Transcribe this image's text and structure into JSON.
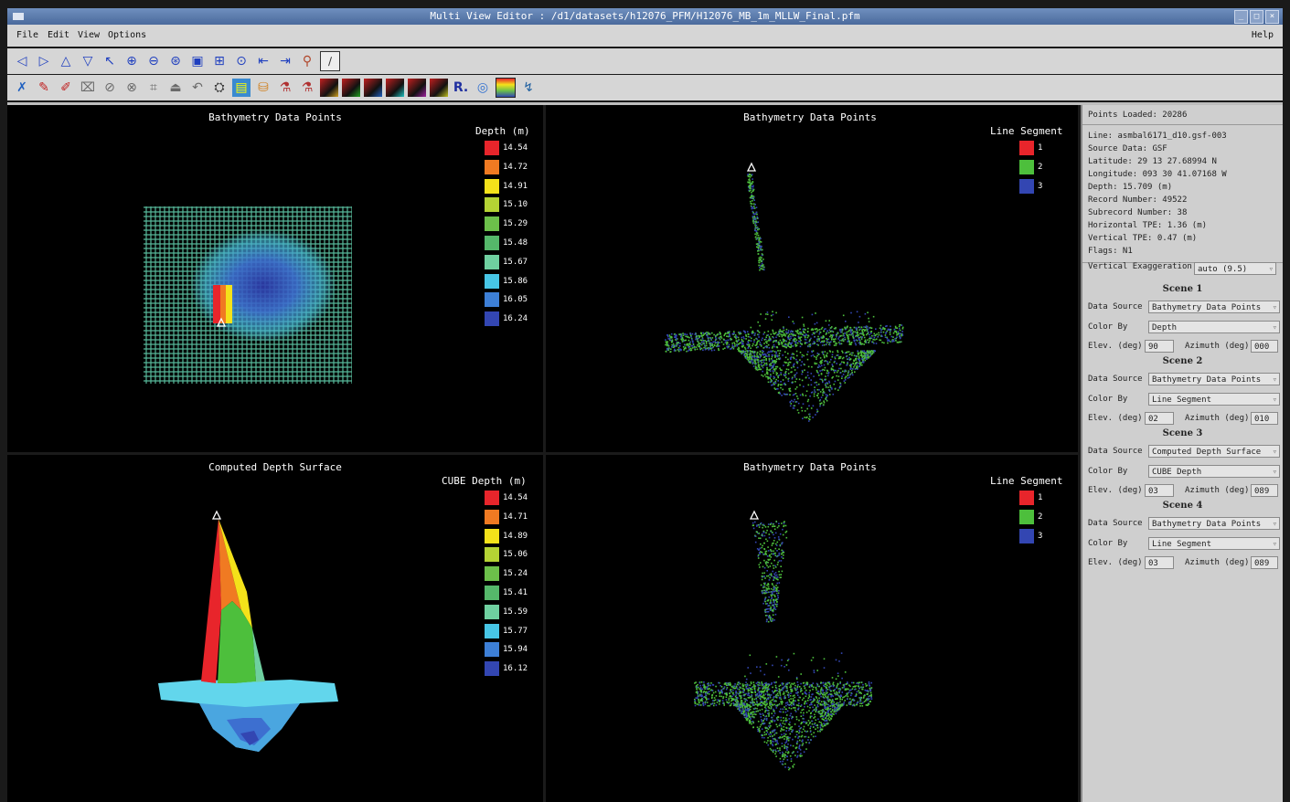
{
  "window": {
    "title": "Multi View Editor  :  /d1/datasets/h12076_PFM/H12076_MB_1m_MLLW_Final.pfm"
  },
  "menu": {
    "file": "File",
    "edit": "Edit",
    "view": "View",
    "options": "Options",
    "help": "Help"
  },
  "views": {
    "top_left": {
      "title": "Bathymetry Data Points",
      "legend_title": "Depth (m)",
      "legend": [
        {
          "value": "14.54",
          "color": "#e8252b"
        },
        {
          "value": "14.72",
          "color": "#f07a22"
        },
        {
          "value": "14.91",
          "color": "#f4e21a"
        },
        {
          "value": "15.10",
          "color": "#b5d334"
        },
        {
          "value": "15.29",
          "color": "#6cc04a"
        },
        {
          "value": "15.48",
          "color": "#55b86a"
        },
        {
          "value": "15.67",
          "color": "#6fd0a0"
        },
        {
          "value": "15.86",
          "color": "#47c6e6"
        },
        {
          "value": "16.05",
          "color": "#3d7fd6"
        },
        {
          "value": "16.24",
          "color": "#3346b2"
        }
      ]
    },
    "top_right": {
      "title": "Bathymetry Data Points",
      "legend_title": "Line Segment",
      "legend": [
        {
          "value": "1",
          "color": "#e8252b"
        },
        {
          "value": "2",
          "color": "#4dbf3c"
        },
        {
          "value": "3",
          "color": "#3346b2"
        }
      ]
    },
    "bottom_left": {
      "title": "Computed Depth Surface",
      "legend_title": "CUBE Depth (m)",
      "legend": [
        {
          "value": "14.54",
          "color": "#e8252b"
        },
        {
          "value": "14.71",
          "color": "#f07a22"
        },
        {
          "value": "14.89",
          "color": "#f4e21a"
        },
        {
          "value": "15.06",
          "color": "#b5d334"
        },
        {
          "value": "15.24",
          "color": "#6cc04a"
        },
        {
          "value": "15.41",
          "color": "#55b86a"
        },
        {
          "value": "15.59",
          "color": "#6fd0a0"
        },
        {
          "value": "15.77",
          "color": "#47c6e6"
        },
        {
          "value": "15.94",
          "color": "#3d7fd6"
        },
        {
          "value": "16.12",
          "color": "#3346b2"
        }
      ]
    },
    "bottom_right": {
      "title": "Bathymetry Data Points",
      "legend_title": "Line Segment",
      "legend": [
        {
          "value": "1",
          "color": "#e8252b"
        },
        {
          "value": "2",
          "color": "#4dbf3c"
        },
        {
          "value": "3",
          "color": "#3346b2"
        }
      ]
    }
  },
  "side": {
    "points_loaded": "Points Loaded: 20286",
    "info": [
      "Line: asmbal6171_d10.gsf-003",
      "Source Data: GSF",
      "Latitude:  29 13 27.68994 N",
      "Longitude: 093 30 41.07168 W",
      "Depth: 15.709 (m)",
      "Record Number: 49522",
      "Subrecord Number: 38",
      "Horizontal TPE: 1.36 (m)",
      "Vertical TPE: 0.47 (m)",
      "Flags: N1"
    ],
    "vert_exag_label": "Vertical Exaggeration",
    "vert_exag_value": "auto (9.5)",
    "labels": {
      "data_source": "Data Source",
      "color_by": "Color By",
      "elev": "Elev. (deg)",
      "azimuth": "Azimuth (deg)"
    },
    "scenes": [
      {
        "title": "Scene 1",
        "data_source": "Bathymetry Data Points",
        "color_by": "Depth",
        "elev": "90",
        "azimuth": "000"
      },
      {
        "title": "Scene 2",
        "data_source": "Bathymetry Data Points",
        "color_by": "Line Segment",
        "elev": "02",
        "azimuth": "010"
      },
      {
        "title": "Scene 3",
        "data_source": "Computed Depth Surface",
        "color_by": "CUBE Depth",
        "elev": "03",
        "azimuth": "089"
      },
      {
        "title": "Scene 4",
        "data_source": "Bathymetry Data Points",
        "color_by": "Line Segment",
        "elev": "03",
        "azimuth": "089"
      }
    ]
  }
}
